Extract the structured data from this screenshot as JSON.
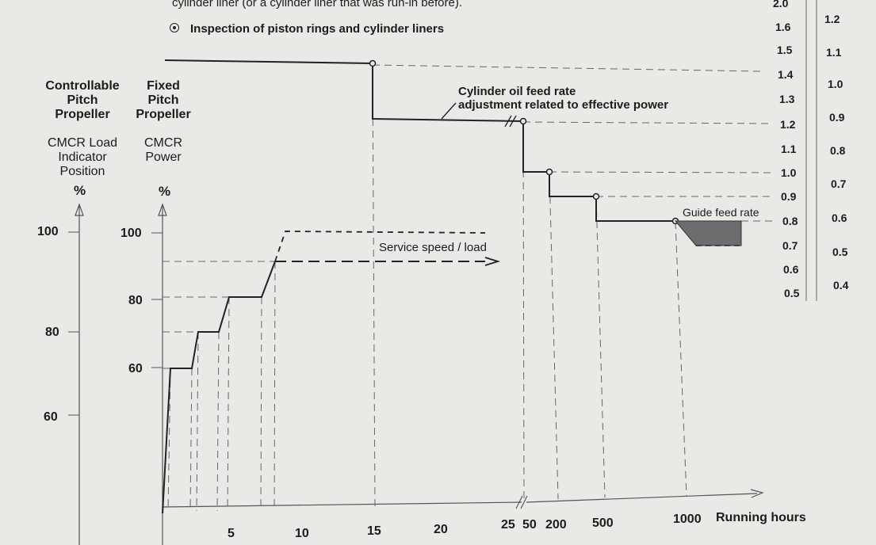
{
  "top_text": {
    "line1": "cylinder liner (or a cylinder liner that was run-in before).",
    "line2": "Inspection of piston rings and cylinder liners"
  },
  "headers": {
    "cpp": [
      "Controllable",
      "Pitch",
      "Propeller"
    ],
    "fpp": [
      "Fixed",
      "Pitch",
      "Propeller"
    ],
    "cpp_sub": [
      "CMCR Load",
      "Indicator",
      "Position"
    ],
    "fpp_sub": [
      "CMCR",
      "Power"
    ],
    "cpp_unit": "%",
    "fpp_unit": "%"
  },
  "chart_data": {
    "type": "line",
    "title": "",
    "xlabel": "Running hours",
    "x_ticks": [
      "5",
      "10",
      "15",
      "20",
      "25",
      "50",
      "200",
      "500",
      "1000"
    ],
    "x_scale": "broken axis: linear 0-25 h, then 50, 200, 500, 1000 h",
    "left_axis_cpp_load_indicator": {
      "ticks": [
        60,
        80,
        100
      ],
      "unit": "%"
    },
    "left_axis_fpp_power": {
      "ticks": [
        60,
        80,
        100
      ],
      "unit": "%"
    },
    "right_axis_outer": {
      "ticks": [
        "2.0",
        "1.6",
        "1.5",
        "1.4",
        "1.3",
        "1.2",
        "1.1",
        "1.0",
        "0.9",
        "0.8",
        "0.7",
        "0.6",
        "0.5"
      ]
    },
    "right_axis_inner": {
      "ticks": [
        "1.2",
        "1.1",
        "1.0",
        "0.9",
        "0.8",
        "0.7",
        "0.6",
        "0.5",
        "0.4"
      ]
    },
    "series": [
      {
        "name": "",
        "values": [
          [
            0,
            44
          ],
          [
            0.75,
            61
          ],
          [
            2,
            61
          ],
          [
            2.5,
            70
          ],
          [
            4,
            70
          ],
          [
            5,
            80
          ],
          [
            7,
            80
          ],
          [
            8.5,
            90
          ],
          [
            15,
            90
          ],
          [
            20,
            90
          ],
          [
            23,
            90
          ]
        ]
      },
      {
        "name": "",
        "values": [
          [
            8.5,
            90
          ],
          [
            9,
            99.5
          ],
          [
            23,
            99.5
          ]
        ]
      },
      {
        "name": "Cylinder oil feed rate adjustment related to effective power",
        "values": [
          [
            0,
            "1.5"
          ],
          [
            15,
            "1.5"
          ],
          [
            15,
            "1.2"
          ],
          [
            25,
            "1.2"
          ],
          [
            50,
            "1.0"
          ],
          [
            200,
            "0.9"
          ],
          [
            500,
            "0.8"
          ],
          [
            1000,
            "0.8"
          ]
        ]
      }
    ],
    "annotations": [
      "Cylinder oil feed rate",
      "adjustment related to effective power",
      "Service speed / load",
      "Guide feed rate"
    ],
    "grid": false
  }
}
